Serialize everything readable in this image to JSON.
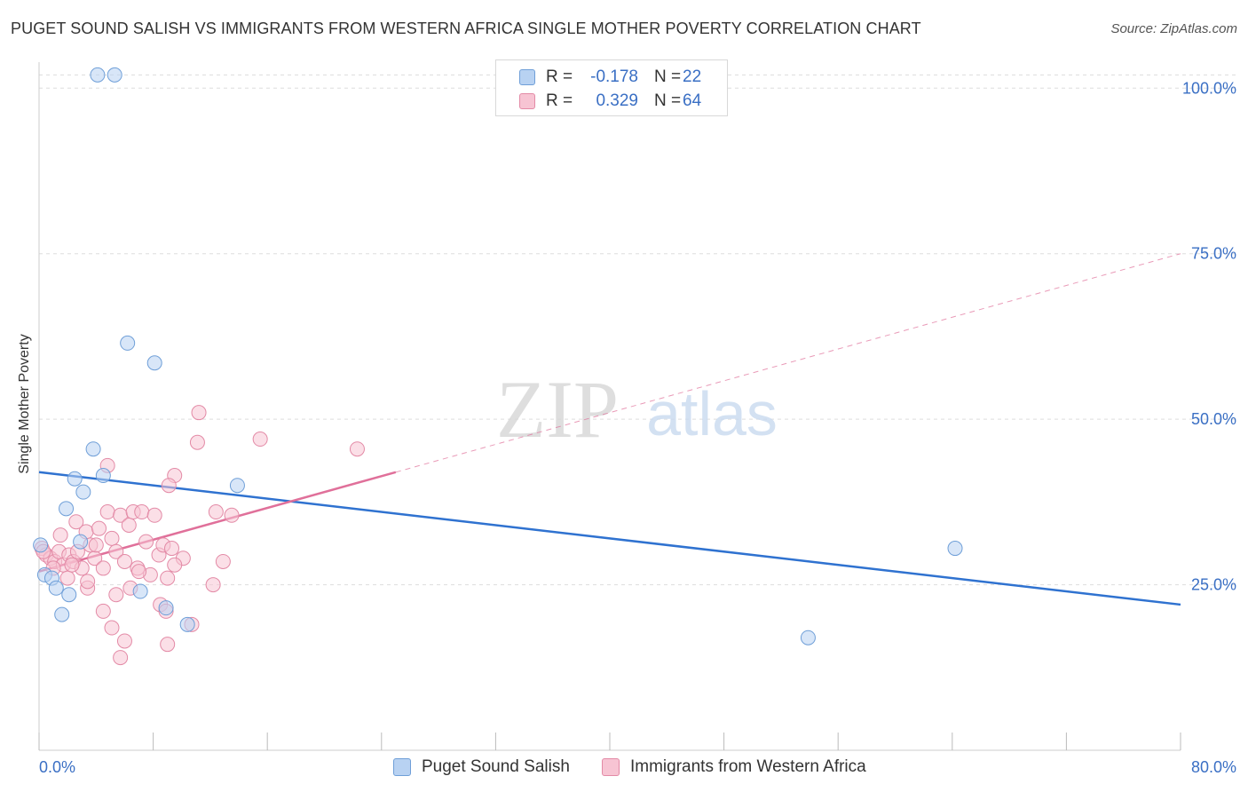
{
  "chart_data": {
    "type": "scatter",
    "title": "PUGET SOUND SALISH VS IMMIGRANTS FROM WESTERN AFRICA SINGLE MOTHER POVERTY CORRELATION CHART",
    "source": "Source: ZipAtlas.com",
    "ylabel": "Single Mother Poverty",
    "xlabel": "",
    "xlim": [
      0,
      80
    ],
    "ylim": [
      0,
      105
    ],
    "x_tick_labels": [
      "0.0%",
      "80.0%"
    ],
    "y_ticks": [
      25,
      50,
      75,
      100
    ],
    "y_tick_labels": [
      "25.0%",
      "50.0%",
      "75.0%",
      "100.0%"
    ],
    "watermark": {
      "part1": "ZIP",
      "part2": "atlas"
    },
    "colors": {
      "blue_fill": "#b8d2f2",
      "blue_stroke": "#6f9fd8",
      "blue_line": "#2f72d0",
      "pink_fill": "#f7c4d3",
      "pink_stroke": "#e38aa6",
      "pink_line": "#e0709a",
      "tick_label": "#3a6fc4"
    },
    "legend": [
      {
        "r_label": "R =",
        "r_value": "-0.178",
        "n_label": "N =",
        "n_value": "22"
      },
      {
        "r_label": "R =",
        "r_value": "0.329",
        "n_label": "N =",
        "n_value": "64"
      }
    ],
    "series": [
      {
        "name": "Puget Sound Salish",
        "trend": {
          "x0": 0,
          "y0": 42.0,
          "x1": 80,
          "y1": 22.0
        },
        "points": [
          [
            4.1,
            102.0
          ],
          [
            5.3,
            102.0
          ],
          [
            6.2,
            61.5
          ],
          [
            8.1,
            58.5
          ],
          [
            3.8,
            45.5
          ],
          [
            2.5,
            41.0
          ],
          [
            4.5,
            41.5
          ],
          [
            3.1,
            39.0
          ],
          [
            13.9,
            40.0
          ],
          [
            1.9,
            36.5
          ],
          [
            2.9,
            31.5
          ],
          [
            0.1,
            31.0
          ],
          [
            0.4,
            26.5
          ],
          [
            0.9,
            26.0
          ],
          [
            1.2,
            24.5
          ],
          [
            2.1,
            23.5
          ],
          [
            7.1,
            24.0
          ],
          [
            1.6,
            20.5
          ],
          [
            8.9,
            21.5
          ],
          [
            10.4,
            19.0
          ],
          [
            53.9,
            17.0
          ],
          [
            64.2,
            30.5
          ]
        ]
      },
      {
        "name": "Immigrants from Western Africa",
        "trend": {
          "x0": 0,
          "y0": 27.0,
          "x1": 25,
          "y1": 42.0,
          "dash_x1": 80,
          "dash_y1": 75.0
        },
        "points": [
          [
            11.2,
            51.0
          ],
          [
            11.1,
            46.5
          ],
          [
            15.5,
            47.0
          ],
          [
            22.3,
            45.5
          ],
          [
            4.8,
            43.0
          ],
          [
            9.5,
            41.5
          ],
          [
            9.1,
            40.0
          ],
          [
            0.2,
            30.5
          ],
          [
            0.5,
            29.5
          ],
          [
            0.8,
            29.0
          ],
          [
            1.1,
            28.5
          ],
          [
            1.4,
            30.0
          ],
          [
            1.7,
            28.0
          ],
          [
            2.1,
            29.5
          ],
          [
            2.4,
            28.5
          ],
          [
            2.7,
            30.0
          ],
          [
            3.0,
            27.5
          ],
          [
            3.3,
            33.0
          ],
          [
            3.6,
            31.0
          ],
          [
            3.9,
            29.0
          ],
          [
            4.2,
            33.5
          ],
          [
            4.5,
            27.5
          ],
          [
            4.8,
            36.0
          ],
          [
            5.1,
            32.0
          ],
          [
            5.4,
            30.0
          ],
          [
            5.7,
            35.5
          ],
          [
            6.0,
            28.5
          ],
          [
            6.3,
            34.0
          ],
          [
            6.6,
            36.0
          ],
          [
            6.9,
            27.5
          ],
          [
            7.2,
            36.0
          ],
          [
            7.5,
            31.5
          ],
          [
            7.8,
            26.5
          ],
          [
            8.1,
            35.5
          ],
          [
            8.4,
            29.5
          ],
          [
            8.7,
            31.0
          ],
          [
            9.0,
            26.0
          ],
          [
            9.3,
            30.5
          ],
          [
            10.1,
            29.0
          ],
          [
            12.9,
            28.5
          ],
          [
            12.4,
            36.0
          ],
          [
            13.5,
            35.5
          ],
          [
            1.5,
            32.5
          ],
          [
            2.6,
            34.5
          ],
          [
            3.4,
            24.5
          ],
          [
            3.4,
            25.5
          ],
          [
            4.5,
            21.0
          ],
          [
            5.4,
            23.5
          ],
          [
            6.4,
            24.5
          ],
          [
            5.1,
            18.5
          ],
          [
            6.0,
            16.5
          ],
          [
            5.7,
            14.0
          ],
          [
            8.5,
            22.0
          ],
          [
            8.9,
            21.0
          ],
          [
            9.0,
            16.0
          ],
          [
            10.7,
            19.0
          ],
          [
            12.2,
            25.0
          ],
          [
            2.0,
            26.0
          ],
          [
            1.0,
            27.5
          ],
          [
            0.3,
            30.0
          ],
          [
            7.0,
            27.0
          ],
          [
            9.5,
            28.0
          ],
          [
            4.0,
            31.0
          ],
          [
            2.3,
            28.0
          ]
        ]
      }
    ]
  }
}
